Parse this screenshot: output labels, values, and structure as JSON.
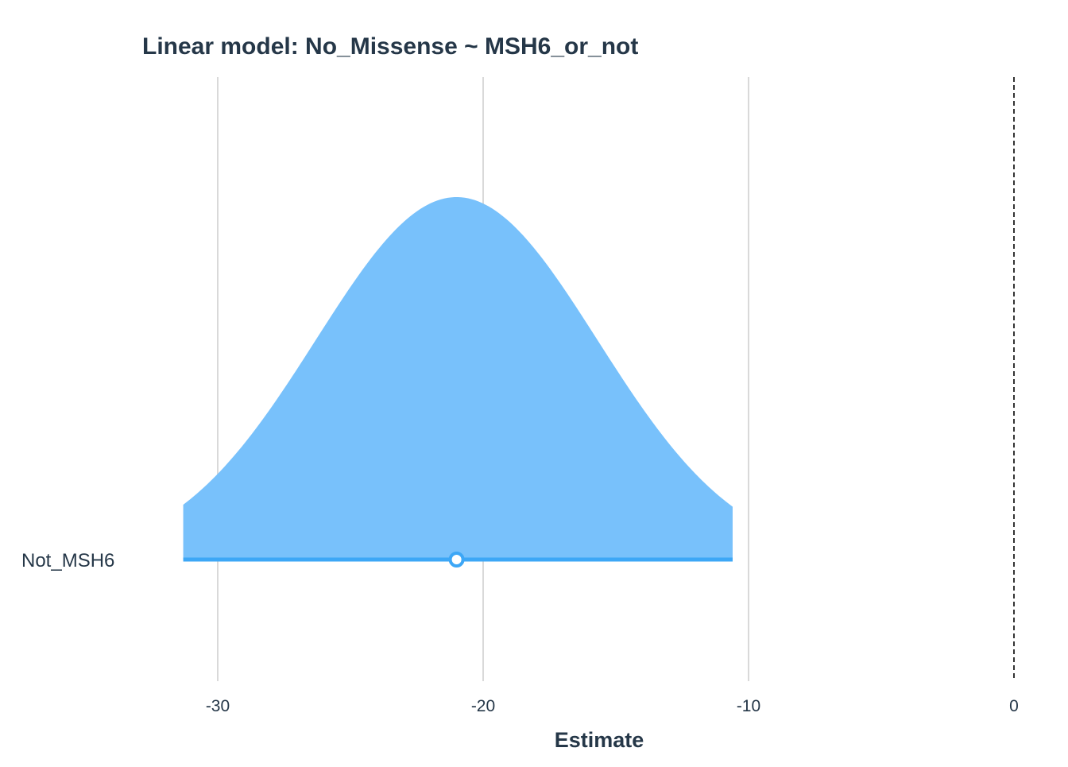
{
  "chart_data": {
    "type": "area",
    "title": "Linear model: No_Missense ~ MSH6_or_not",
    "xlabel": "Estimate",
    "ylabel": "",
    "xlim": [
      -31.3,
      0
    ],
    "x_ticks": [
      -30,
      -20,
      -10,
      0
    ],
    "x_tick_labels": [
      "-30",
      "-20",
      "-10",
      "0"
    ],
    "grid": true,
    "reference_line": {
      "x": 0,
      "style": "dashed"
    },
    "series": [
      {
        "name": "Not_MSH6",
        "estimate": -21.0,
        "ci_low": -31.3,
        "ci_high": -10.6,
        "std_error": 5.3,
        "distribution": "normal"
      }
    ],
    "categories": [
      "Not_MSH6"
    ]
  },
  "colors": {
    "text": "#253748",
    "fill": "#78c1fb",
    "line": "#3da7f6",
    "grid": "#d9d9d9",
    "reference": "#333333",
    "point_fill": "#ffffff"
  }
}
